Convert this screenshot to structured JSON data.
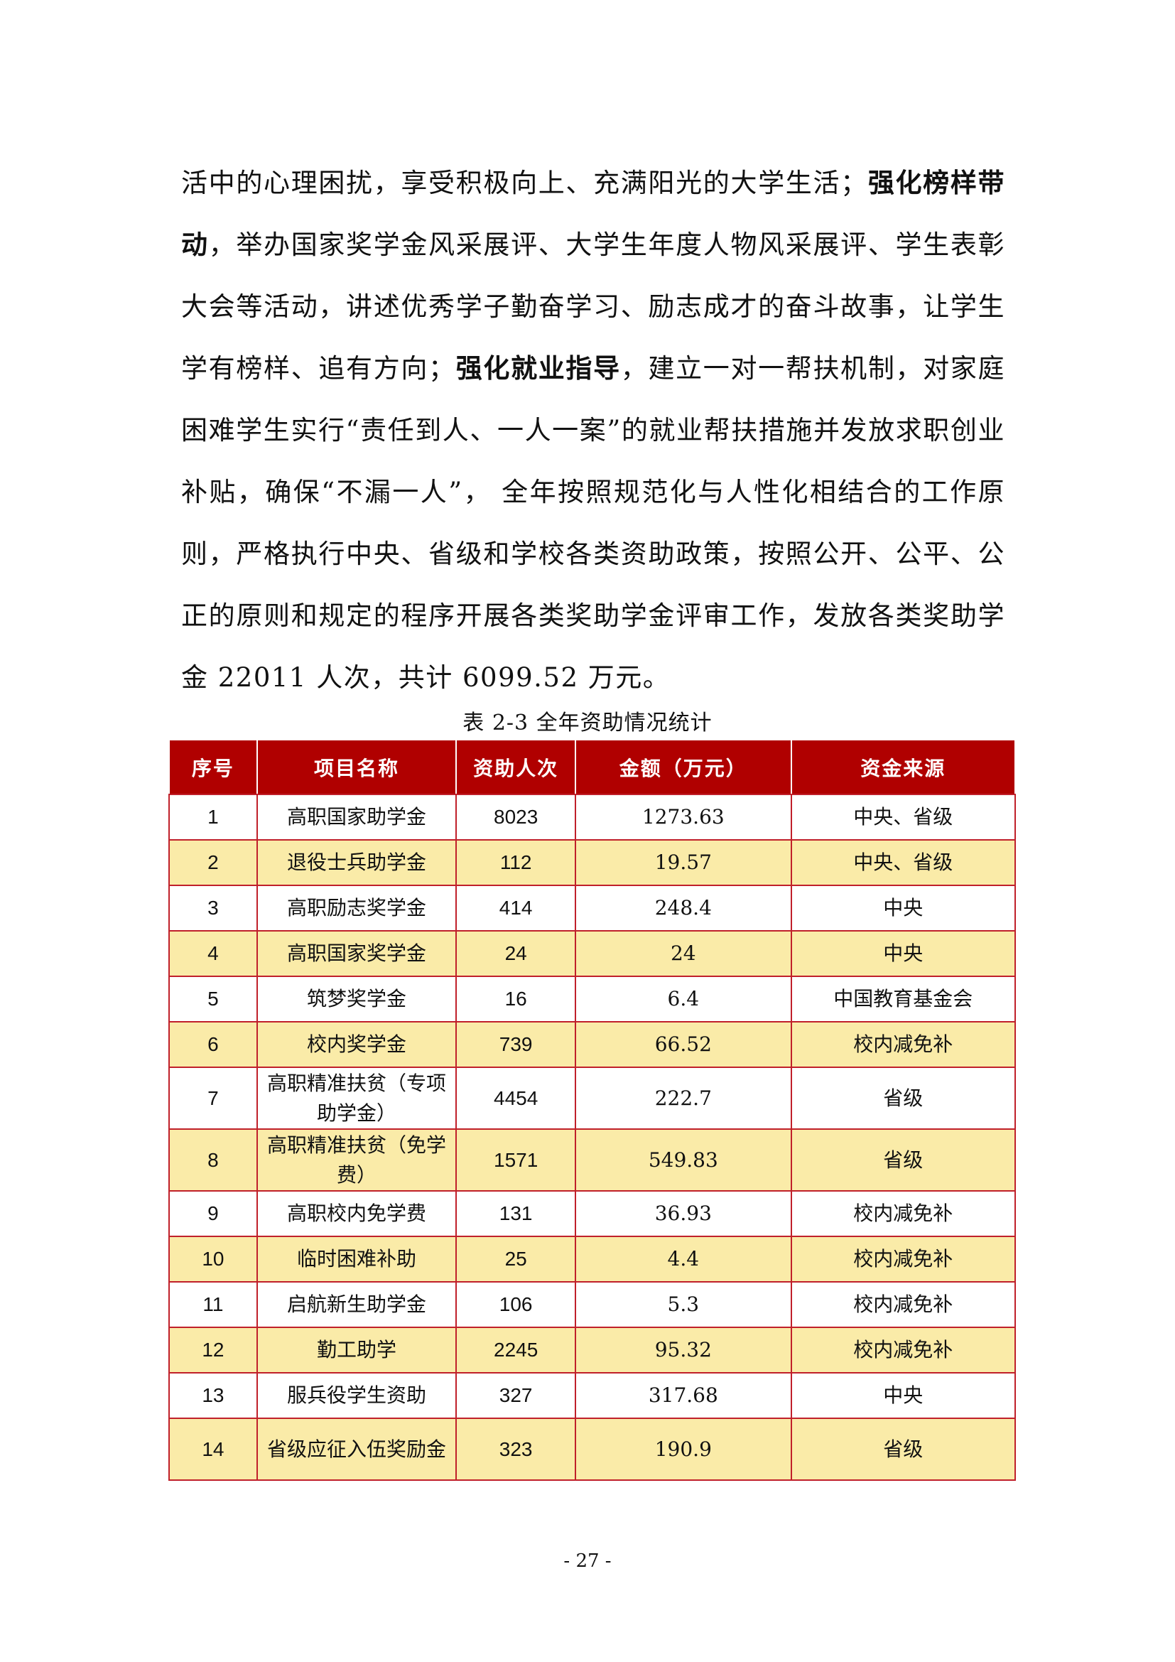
{
  "paragraph": {
    "seg1": "活中的心理困扰，享受积极向上、充满阳光的大学生活；",
    "bold1": "强化榜样带动",
    "seg2": "，举办国家奖学金风采展评、大学生年度人物风采展评、学生表彰大会等活动，讲述优秀学子勤奋学习、励志成才的奋斗故事，让学生学有榜样、追有方向；",
    "bold2": "强化就业指导",
    "seg3": "，建立一对一帮扶机制，对家庭困难学生实行“责任到人、一人一案”的就业帮扶措施并发放求职创业补贴，确保“不漏一人”， 全年按照规范化与人性化相结合的工作原则，严格执行中央、省级和学校各类资助政策，按照公开、公平、公正的原则和规定的程序开展各类奖助学金评审工作，发放各类奖助学金 22011 人次，共计 6099.52 万元。"
  },
  "table": {
    "caption": "表 2-3 全年资助情况统计",
    "headers": [
      "序号",
      "项目名称",
      "资助人次",
      "金额（万元）",
      "资金来源"
    ],
    "rows": [
      [
        "1",
        "高职国家助学金",
        "8023",
        "1273.63",
        "中央、省级"
      ],
      [
        "2",
        "退役士兵助学金",
        "112",
        "19.57",
        "中央、省级"
      ],
      [
        "3",
        "高职励志奖学金",
        "414",
        "248.4",
        "中央"
      ],
      [
        "4",
        "高职国家奖学金",
        "24",
        "24",
        "中央"
      ],
      [
        "5",
        "筑梦奖学金",
        "16",
        "6.4",
        "中国教育基金会"
      ],
      [
        "6",
        "校内奖学金",
        "739",
        "66.52",
        "校内减免补"
      ],
      [
        "7",
        "高职精准扶贫（专项助学金）",
        "4454",
        "222.7",
        "省级"
      ],
      [
        "8",
        "高职精准扶贫（免学费）",
        "1571",
        "549.83",
        "省级"
      ],
      [
        "9",
        "高职校内免学费",
        "131",
        "36.93",
        "校内减免补"
      ],
      [
        "10",
        "临时困难补助",
        "25",
        "4.4",
        "校内减免补"
      ],
      [
        "11",
        "启航新生助学金",
        "106",
        "5.3",
        "校内减免补"
      ],
      [
        "12",
        "勤工助学",
        "2245",
        "95.32",
        "校内减免补"
      ],
      [
        "13",
        "服兵役学生资助",
        "327",
        "317.68",
        "中央"
      ],
      [
        "14",
        "省级应征入伍奖励金",
        "323",
        "190.9",
        "省级"
      ]
    ],
    "header_color": "#b00000",
    "alt_row_color": "#faeba8",
    "border_color": "#c0202a"
  },
  "page_number": "- 27 -"
}
